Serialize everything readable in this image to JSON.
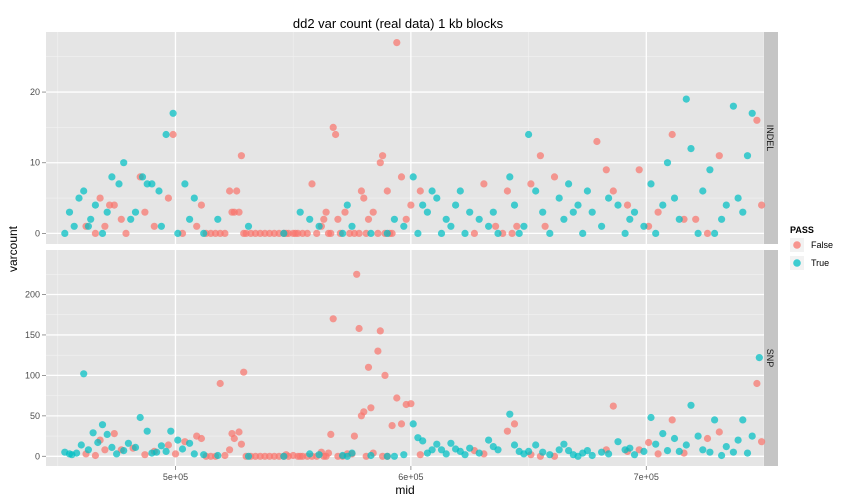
{
  "chart_data": {
    "type": "scatter",
    "title": "dd2 var count (real data)  1 kb blocks",
    "xlabel": "mid",
    "ylabel": "varcount",
    "xlim": [
      445000,
      750000
    ],
    "x_ticks": [
      500000,
      600000,
      700000
    ],
    "x_tick_labels": [
      "5e+05",
      "6e+05",
      "7e+05"
    ],
    "legend": {
      "title": "PASS",
      "placement": "right",
      "entries": [
        {
          "name": "False",
          "color": "#F8766D"
        },
        {
          "name": "True",
          "color": "#00BFC4"
        }
      ]
    },
    "panels": [
      {
        "name": "INDEL",
        "ylim": [
          -1.5,
          28.5
        ],
        "y_ticks": [
          0,
          10,
          20
        ],
        "series": [
          {
            "name": "False",
            "x": [
              462000,
              466000,
              468000,
              470000,
              472000,
              474000,
              477000,
              479000,
              485000,
              487000,
              491000,
              497000,
              499000,
              503000,
              509000,
              511000,
              513000,
              515000,
              517000,
              519000,
              521000,
              523000,
              524000,
              525000,
              526000,
              527000,
              528000,
              529000,
              530000,
              532000,
              534000,
              536000,
              538000,
              540000,
              542000,
              544000,
              546000,
              547000,
              548000,
              550000,
              551000,
              552000,
              554000,
              556000,
              558000,
              560000,
              562000,
              563000,
              564000,
              565000,
              566000,
              567000,
              568000,
              569000,
              570000,
              572000,
              574000,
              576000,
              578000,
              579000,
              580000,
              581000,
              582000,
              584000,
              586000,
              587000,
              588000,
              589000,
              590000,
              591000,
              592000,
              594000,
              596000,
              598000,
              600000,
              604000,
              627000,
              631000,
              636000,
              639000,
              641000,
              643000,
              645000,
              651000,
              655000,
              657000,
              661000,
              679000,
              683000,
              686000,
              692000,
              697000,
              701000,
              705000,
              711000,
              716000,
              721000,
              726000,
              731000,
              747000,
              749000
            ],
            "y": [
              1,
              0,
              5,
              1,
              4,
              4,
              2,
              0,
              8,
              3,
              1,
              5,
              14,
              0,
              1,
              4,
              0,
              0,
              0,
              0,
              0,
              6,
              3,
              3,
              6,
              3,
              11,
              0,
              0,
              0,
              0,
              0,
              0,
              0,
              0,
              0,
              0,
              0,
              0,
              0,
              0,
              0,
              0,
              0,
              7,
              0,
              1,
              2,
              3,
              0,
              0,
              15,
              14,
              2,
              0,
              3,
              0,
              0,
              0,
              6,
              5,
              0,
              2,
              3,
              0,
              10,
              11,
              0,
              6,
              0,
              0,
              27,
              8,
              2,
              4,
              6,
              0,
              7,
              1,
              0,
              6,
              0,
              1,
              7,
              11,
              1,
              8,
              13,
              9,
              6,
              4,
              9,
              1,
              3,
              14,
              2,
              2,
              0,
              11,
              16,
              4
            ]
          },
          {
            "name": "True",
            "x": [
              453000,
              455000,
              457000,
              459000,
              461000,
              463000,
              464000,
              466000,
              469000,
              471000,
              473000,
              476000,
              478000,
              481000,
              483000,
              486000,
              488000,
              490000,
              493000,
              494000,
              496000,
              499000,
              501000,
              504000,
              506000,
              508000,
              512000,
              518000,
              531000,
              546000,
              553000,
              557000,
              561000,
              571000,
              573000,
              575000,
              583000,
              590000,
              593000,
              597000,
              601000,
              603000,
              605000,
              607000,
              609000,
              611000,
              613000,
              615000,
              617000,
              619000,
              621000,
              623000,
              625000,
              629000,
              633000,
              635000,
              637000,
              642000,
              644000,
              646000,
              648000,
              650000,
              653000,
              656000,
              659000,
              663000,
              665000,
              667000,
              669000,
              671000,
              673000,
              675000,
              677000,
              681000,
              684000,
              688000,
              691000,
              693000,
              695000,
              699000,
              702000,
              704000,
              707000,
              709000,
              712000,
              714000,
              717000,
              719000,
              722000,
              724000,
              727000,
              729000,
              732000,
              734000,
              737000,
              739000,
              741000,
              743000,
              745000
            ],
            "y": [
              0,
              3,
              1,
              5,
              6,
              1,
              2,
              4,
              0,
              3,
              8,
              7,
              10,
              2,
              3,
              8,
              7,
              7,
              6,
              1,
              14,
              17,
              0,
              7,
              2,
              5,
              0,
              2,
              1,
              0,
              3,
              2,
              1,
              0,
              4,
              1,
              0,
              0,
              2,
              1,
              8,
              0,
              4,
              3,
              6,
              5,
              0,
              2,
              1,
              4,
              6,
              0,
              3,
              2,
              1,
              3,
              0,
              8,
              4,
              0,
              1,
              14,
              6,
              3,
              0,
              5,
              2,
              7,
              3,
              4,
              0,
              6,
              3,
              1,
              5,
              4,
              0,
              2,
              3,
              1,
              7,
              0,
              4,
              10,
              5,
              2,
              19,
              12,
              0,
              6,
              9,
              0,
              2,
              4,
              18,
              5,
              3,
              11,
              17
            ]
          }
        ]
      },
      {
        "name": "SNP",
        "ylim": [
          -12,
          255
        ],
        "y_ticks": [
          0,
          50,
          100,
          150,
          200
        ],
        "series": [
          {
            "name": "False",
            "x": [
              462000,
              466000,
              468000,
              470000,
              474000,
              477000,
              482000,
              487000,
              491000,
              497000,
              500000,
              504000,
              509000,
              511000,
              513000,
              515000,
              517000,
              519000,
              521000,
              523000,
              524000,
              525000,
              527000,
              528000,
              529000,
              530000,
              532000,
              534000,
              536000,
              538000,
              540000,
              542000,
              544000,
              546000,
              547000,
              548000,
              550000,
              552000,
              553000,
              554000,
              556000,
              558000,
              560000,
              562000,
              563000,
              564000,
              565000,
              566000,
              567000,
              569000,
              571000,
              573000,
              575000,
              576000,
              577000,
              578000,
              579000,
              580000,
              581000,
              582000,
              583000,
              584000,
              586000,
              587000,
              588000,
              589000,
              590000,
              592000,
              594000,
              596000,
              598000,
              600000,
              604000,
              627000,
              631000,
              641000,
              644000,
              651000,
              655000,
              661000,
              683000,
              686000,
              692000,
              697000,
              701000,
              705000,
              711000,
              716000,
              726000,
              731000,
              747000,
              749000
            ],
            "y": [
              3,
              1,
              20,
              8,
              28,
              8,
              10,
              2,
              6,
              14,
              3,
              18,
              25,
              22,
              0,
              0,
              0,
              90,
              1,
              8,
              28,
              22,
              30,
              15,
              104,
              0,
              0,
              0,
              0,
              0,
              0,
              0,
              0,
              0,
              2,
              0,
              1,
              0,
              0,
              0,
              0,
              0,
              0,
              5,
              0,
              0,
              4,
              27,
              170,
              0,
              0,
              3,
              3,
              25,
              225,
              158,
              50,
              55,
              0,
              110,
              60,
              4,
              130,
              155,
              0,
              100,
              0,
              38,
              72,
              40,
              64,
              65,
              2,
              7,
              3,
              31,
              40,
              2,
              0,
              0,
              8,
              62,
              6,
              8,
              17,
              3,
              45,
              4,
              22,
              30,
              90,
              18
            ]
          },
          {
            "name": "True",
            "x": [
              453000,
              455000,
              456000,
              458000,
              460000,
              461000,
              463000,
              465000,
              467000,
              469000,
              471000,
              473000,
              475000,
              478000,
              480000,
              483000,
              485000,
              488000,
              490000,
              492000,
              494000,
              496000,
              498000,
              501000,
              503000,
              506000,
              508000,
              512000,
              518000,
              531000,
              546000,
              557000,
              561000,
              571000,
              573000,
              575000,
              583000,
              590000,
              593000,
              597000,
              601000,
              603000,
              605000,
              607000,
              609000,
              611000,
              613000,
              615000,
              617000,
              619000,
              621000,
              623000,
              625000,
              629000,
              633000,
              635000,
              637000,
              642000,
              644000,
              646000,
              648000,
              650000,
              653000,
              656000,
              659000,
              663000,
              665000,
              667000,
              669000,
              671000,
              673000,
              675000,
              677000,
              681000,
              684000,
              688000,
              691000,
              693000,
              695000,
              699000,
              702000,
              704000,
              707000,
              709000,
              712000,
              714000,
              717000,
              719000,
              722000,
              724000,
              727000,
              729000,
              732000,
              734000,
              737000,
              739000,
              741000,
              743000,
              745000,
              748000
            ],
            "y": [
              5,
              3,
              2,
              4,
              14,
              102,
              8,
              29,
              17,
              39,
              27,
              11,
              3,
              7,
              16,
              11,
              48,
              31,
              4,
              5,
              13,
              6,
              31,
              20,
              9,
              16,
              3,
              2,
              1,
              0,
              0,
              3,
              2,
              1,
              0,
              4,
              1,
              0,
              0,
              2,
              40,
              23,
              19,
              4,
              8,
              15,
              8,
              3,
              16,
              9,
              6,
              2,
              10,
              4,
              20,
              12,
              8,
              52,
              14,
              6,
              3,
              6,
              14,
              5,
              2,
              8,
              15,
              7,
              2,
              0,
              4,
              7,
              1,
              5,
              3,
              18,
              8,
              10,
              2,
              6,
              48,
              15,
              28,
              7,
              22,
              6,
              14,
              63,
              25,
              8,
              5,
              45,
              1,
              12,
              5,
              20,
              45,
              4,
              25,
              122
            ]
          }
        ]
      }
    ]
  }
}
